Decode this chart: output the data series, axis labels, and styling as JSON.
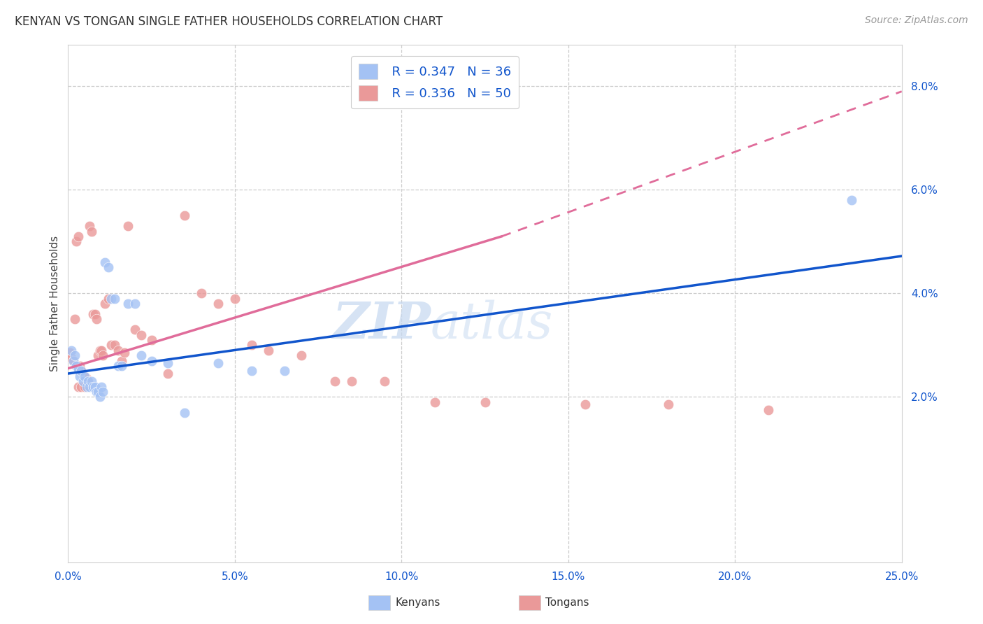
{
  "title": "KENYAN VS TONGAN SINGLE FATHER HOUSEHOLDS CORRELATION CHART",
  "source": "Source: ZipAtlas.com",
  "ylabel": "Single Father Households",
  "xlim": [
    0.0,
    25.0
  ],
  "ylim_min": -1.2,
  "ylim_max": 8.8,
  "ytick_values": [
    2,
    4,
    6,
    8
  ],
  "ytick_labels": [
    "2.0%",
    "4.0%",
    "6.0%",
    "8.0%"
  ],
  "xtick_values": [
    0,
    5,
    10,
    15,
    20,
    25
  ],
  "xtick_labels": [
    "0.0%",
    "5.0%",
    "10.0%",
    "15.0%",
    "20.0%",
    "25.0%"
  ],
  "legend_blue_r": "R = 0.347",
  "legend_blue_n": "N = 36",
  "legend_pink_r": "R = 0.336",
  "legend_pink_n": "N = 50",
  "legend_label_blue": "Kenyans",
  "legend_label_pink": "Tongans",
  "blue_scatter_color": "#a4c2f4",
  "pink_scatter_color": "#ea9999",
  "blue_line_color": "#1155cc",
  "pink_line_color": "#e06c9a",
  "blue_legend_patch": "#a4c2f4",
  "pink_legend_patch": "#ea9999",
  "watermark_text": "ZIP",
  "watermark_text2": "atlas",
  "blue_line_x0": 0.0,
  "blue_line_y0": 2.45,
  "blue_line_x1": 25.0,
  "blue_line_y1": 4.72,
  "pink_solid_x0": 0.0,
  "pink_solid_y0": 2.55,
  "pink_solid_x1": 13.0,
  "pink_solid_y1": 5.1,
  "pink_dash_x0": 13.0,
  "pink_dash_y0": 5.1,
  "pink_dash_x1": 25.0,
  "pink_dash_y1": 7.9,
  "blue_x": [
    0.1,
    0.15,
    0.2,
    0.25,
    0.3,
    0.35,
    0.4,
    0.45,
    0.5,
    0.55,
    0.6,
    0.65,
    0.7,
    0.75,
    0.8,
    0.85,
    0.9,
    0.95,
    1.0,
    1.05,
    1.1,
    1.2,
    1.3,
    1.4,
    1.5,
    1.6,
    1.8,
    2.0,
    2.2,
    2.5,
    3.0,
    3.5,
    4.5,
    5.5,
    6.5,
    23.5
  ],
  "blue_y": [
    2.9,
    2.7,
    2.8,
    2.6,
    2.55,
    2.4,
    2.5,
    2.3,
    2.4,
    2.2,
    2.3,
    2.2,
    2.3,
    2.2,
    2.2,
    2.1,
    2.1,
    2.0,
    2.2,
    2.1,
    4.6,
    4.5,
    3.9,
    3.9,
    2.6,
    2.6,
    3.8,
    3.8,
    2.8,
    2.7,
    2.65,
    1.7,
    2.65,
    2.5,
    2.5,
    5.8
  ],
  "pink_x": [
    0.05,
    0.1,
    0.15,
    0.2,
    0.25,
    0.3,
    0.35,
    0.4,
    0.5,
    0.55,
    0.6,
    0.65,
    0.7,
    0.75,
    0.8,
    0.85,
    0.9,
    0.95,
    1.0,
    1.05,
    1.1,
    1.2,
    1.3,
    1.4,
    1.5,
    1.6,
    1.7,
    1.8,
    2.0,
    2.2,
    2.5,
    3.0,
    3.5,
    4.0,
    4.5,
    5.0,
    5.5,
    6.0,
    7.0,
    8.0,
    8.5,
    9.5,
    11.0,
    12.5,
    15.5,
    18.0,
    21.0,
    0.3,
    0.4,
    0.5
  ],
  "pink_y": [
    2.85,
    2.75,
    2.7,
    3.5,
    5.0,
    5.1,
    2.6,
    2.5,
    2.4,
    2.35,
    2.3,
    5.3,
    5.2,
    3.6,
    3.6,
    3.5,
    2.8,
    2.9,
    2.9,
    2.8,
    3.8,
    3.9,
    3.0,
    3.0,
    2.9,
    2.7,
    2.85,
    5.3,
    3.3,
    3.2,
    3.1,
    2.45,
    5.5,
    4.0,
    3.8,
    3.9,
    3.0,
    2.9,
    2.8,
    2.3,
    2.3,
    2.3,
    1.9,
    1.9,
    1.85,
    1.85,
    1.75,
    2.2,
    2.2,
    2.2
  ]
}
